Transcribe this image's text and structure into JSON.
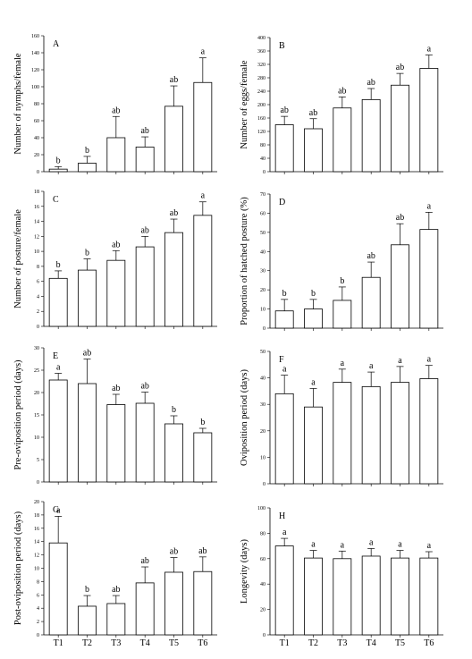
{
  "chart_data": [
    {
      "type": "bar",
      "panel": "A",
      "categories": [
        "T1",
        "T2",
        "T3",
        "T4",
        "T5",
        "T6"
      ],
      "values": [
        3,
        10,
        40,
        29,
        77,
        105
      ],
      "errors": [
        3,
        8,
        25,
        12,
        24,
        29
      ],
      "letters": [
        "b",
        "b",
        "ab",
        "ab",
        "ab",
        "a"
      ],
      "ylabel": "Number of nymphs/female",
      "ylim": [
        0,
        160
      ],
      "yticks": [
        0,
        20,
        40,
        60,
        80,
        100,
        120,
        140,
        160
      ]
    },
    {
      "type": "bar",
      "panel": "B",
      "categories": [
        "T1",
        "T2",
        "T3",
        "T4",
        "T5",
        "T6"
      ],
      "values": [
        140,
        128,
        190,
        215,
        258,
        308
      ],
      "errors": [
        25,
        30,
        33,
        33,
        35,
        40
      ],
      "letters": [
        "ab",
        "ab",
        "ab",
        "ab",
        "ab",
        "a"
      ],
      "ylabel": "Number of eggs/female",
      "ylim": [
        0,
        400
      ],
      "yticks": [
        0,
        40,
        80,
        120,
        160,
        200,
        240,
        280,
        320,
        360,
        400
      ]
    },
    {
      "type": "bar",
      "panel": "C",
      "categories": [
        "T1",
        "T2",
        "T3",
        "T4",
        "T5",
        "T6"
      ],
      "values": [
        6.4,
        7.5,
        8.8,
        10.6,
        12.5,
        14.8
      ],
      "errors": [
        1.0,
        1.5,
        1.3,
        1.4,
        1.8,
        1.8
      ],
      "letters": [
        "b",
        "b",
        "ab",
        "ab",
        "ab",
        "a"
      ],
      "ylabel": "Number of posture/female",
      "ylim": [
        0,
        18
      ],
      "yticks": [
        0,
        2,
        4,
        6,
        8,
        10,
        12,
        14,
        16,
        18
      ]
    },
    {
      "type": "bar",
      "panel": "D",
      "categories": [
        "T1",
        "T2",
        "T3",
        "T4",
        "T5",
        "T6"
      ],
      "values": [
        9,
        10,
        14.5,
        26.5,
        43.5,
        51.5
      ],
      "errors": [
        6,
        5,
        7,
        8,
        11,
        9
      ],
      "letters": [
        "b",
        "b",
        "b",
        "ab",
        "ab",
        "a"
      ],
      "ylabel": "Proportion of hatched posture (%)",
      "ylim": [
        0,
        70
      ],
      "yticks": [
        0,
        10,
        20,
        30,
        40,
        50,
        60,
        70
      ]
    },
    {
      "type": "bar",
      "panel": "E",
      "categories": [
        "T1",
        "T2",
        "T3",
        "T4",
        "T5",
        "T6"
      ],
      "values": [
        22.8,
        22.0,
        17.3,
        17.6,
        13.0,
        11.0
      ],
      "errors": [
        1.5,
        5.5,
        2.3,
        2.5,
        1.8,
        1.0
      ],
      "letters": [
        "a",
        "ab",
        "ab",
        "ab",
        "b",
        "b"
      ],
      "ylabel": "Pre-oviposition period (days)",
      "ylim": [
        0,
        30
      ],
      "yticks": [
        0,
        5,
        10,
        15,
        20,
        25,
        30
      ]
    },
    {
      "type": "bar",
      "panel": "F",
      "categories": [
        "T1",
        "T2",
        "T3",
        "T4",
        "T5",
        "T6"
      ],
      "values": [
        34,
        29,
        38.3,
        36.7,
        38.3,
        39.7
      ],
      "errors": [
        7,
        7,
        5,
        5.5,
        6,
        5
      ],
      "letters": [
        "a",
        "a",
        "a",
        "a",
        "a",
        "a"
      ],
      "ylabel": "Oviposition period (days)",
      "ylim": [
        0,
        50
      ],
      "yticks": [
        0,
        10,
        20,
        30,
        40,
        50
      ]
    },
    {
      "type": "bar",
      "panel": "G",
      "categories": [
        "T1",
        "T2",
        "T3",
        "T4",
        "T5",
        "T6"
      ],
      "values": [
        13.8,
        4.3,
        4.7,
        7.8,
        9.4,
        9.5
      ],
      "errors": [
        4,
        1.6,
        1.2,
        2.4,
        2.2,
        2.2
      ],
      "letters": [
        "a",
        "b",
        "ab",
        "ab",
        "ab",
        "ab"
      ],
      "ylabel": "Post-oviposition period (days)",
      "ylim": [
        0,
        20
      ],
      "yticks": [
        0,
        2,
        4,
        6,
        8,
        10,
        12,
        14,
        16,
        18,
        20
      ]
    },
    {
      "type": "bar",
      "panel": "H",
      "categories": [
        "T1",
        "T2",
        "T3",
        "T4",
        "T5",
        "T6"
      ],
      "values": [
        70,
        60.5,
        60,
        62,
        60.5,
        60.5
      ],
      "errors": [
        6,
        6,
        6,
        6,
        6,
        5
      ],
      "letters": [
        "a",
        "a",
        "a",
        "a",
        "a",
        "a"
      ],
      "ylabel": "Longevity (days)",
      "ylim": [
        0,
        100
      ],
      "yticks": [
        0,
        20,
        40,
        60,
        80,
        100
      ]
    }
  ]
}
